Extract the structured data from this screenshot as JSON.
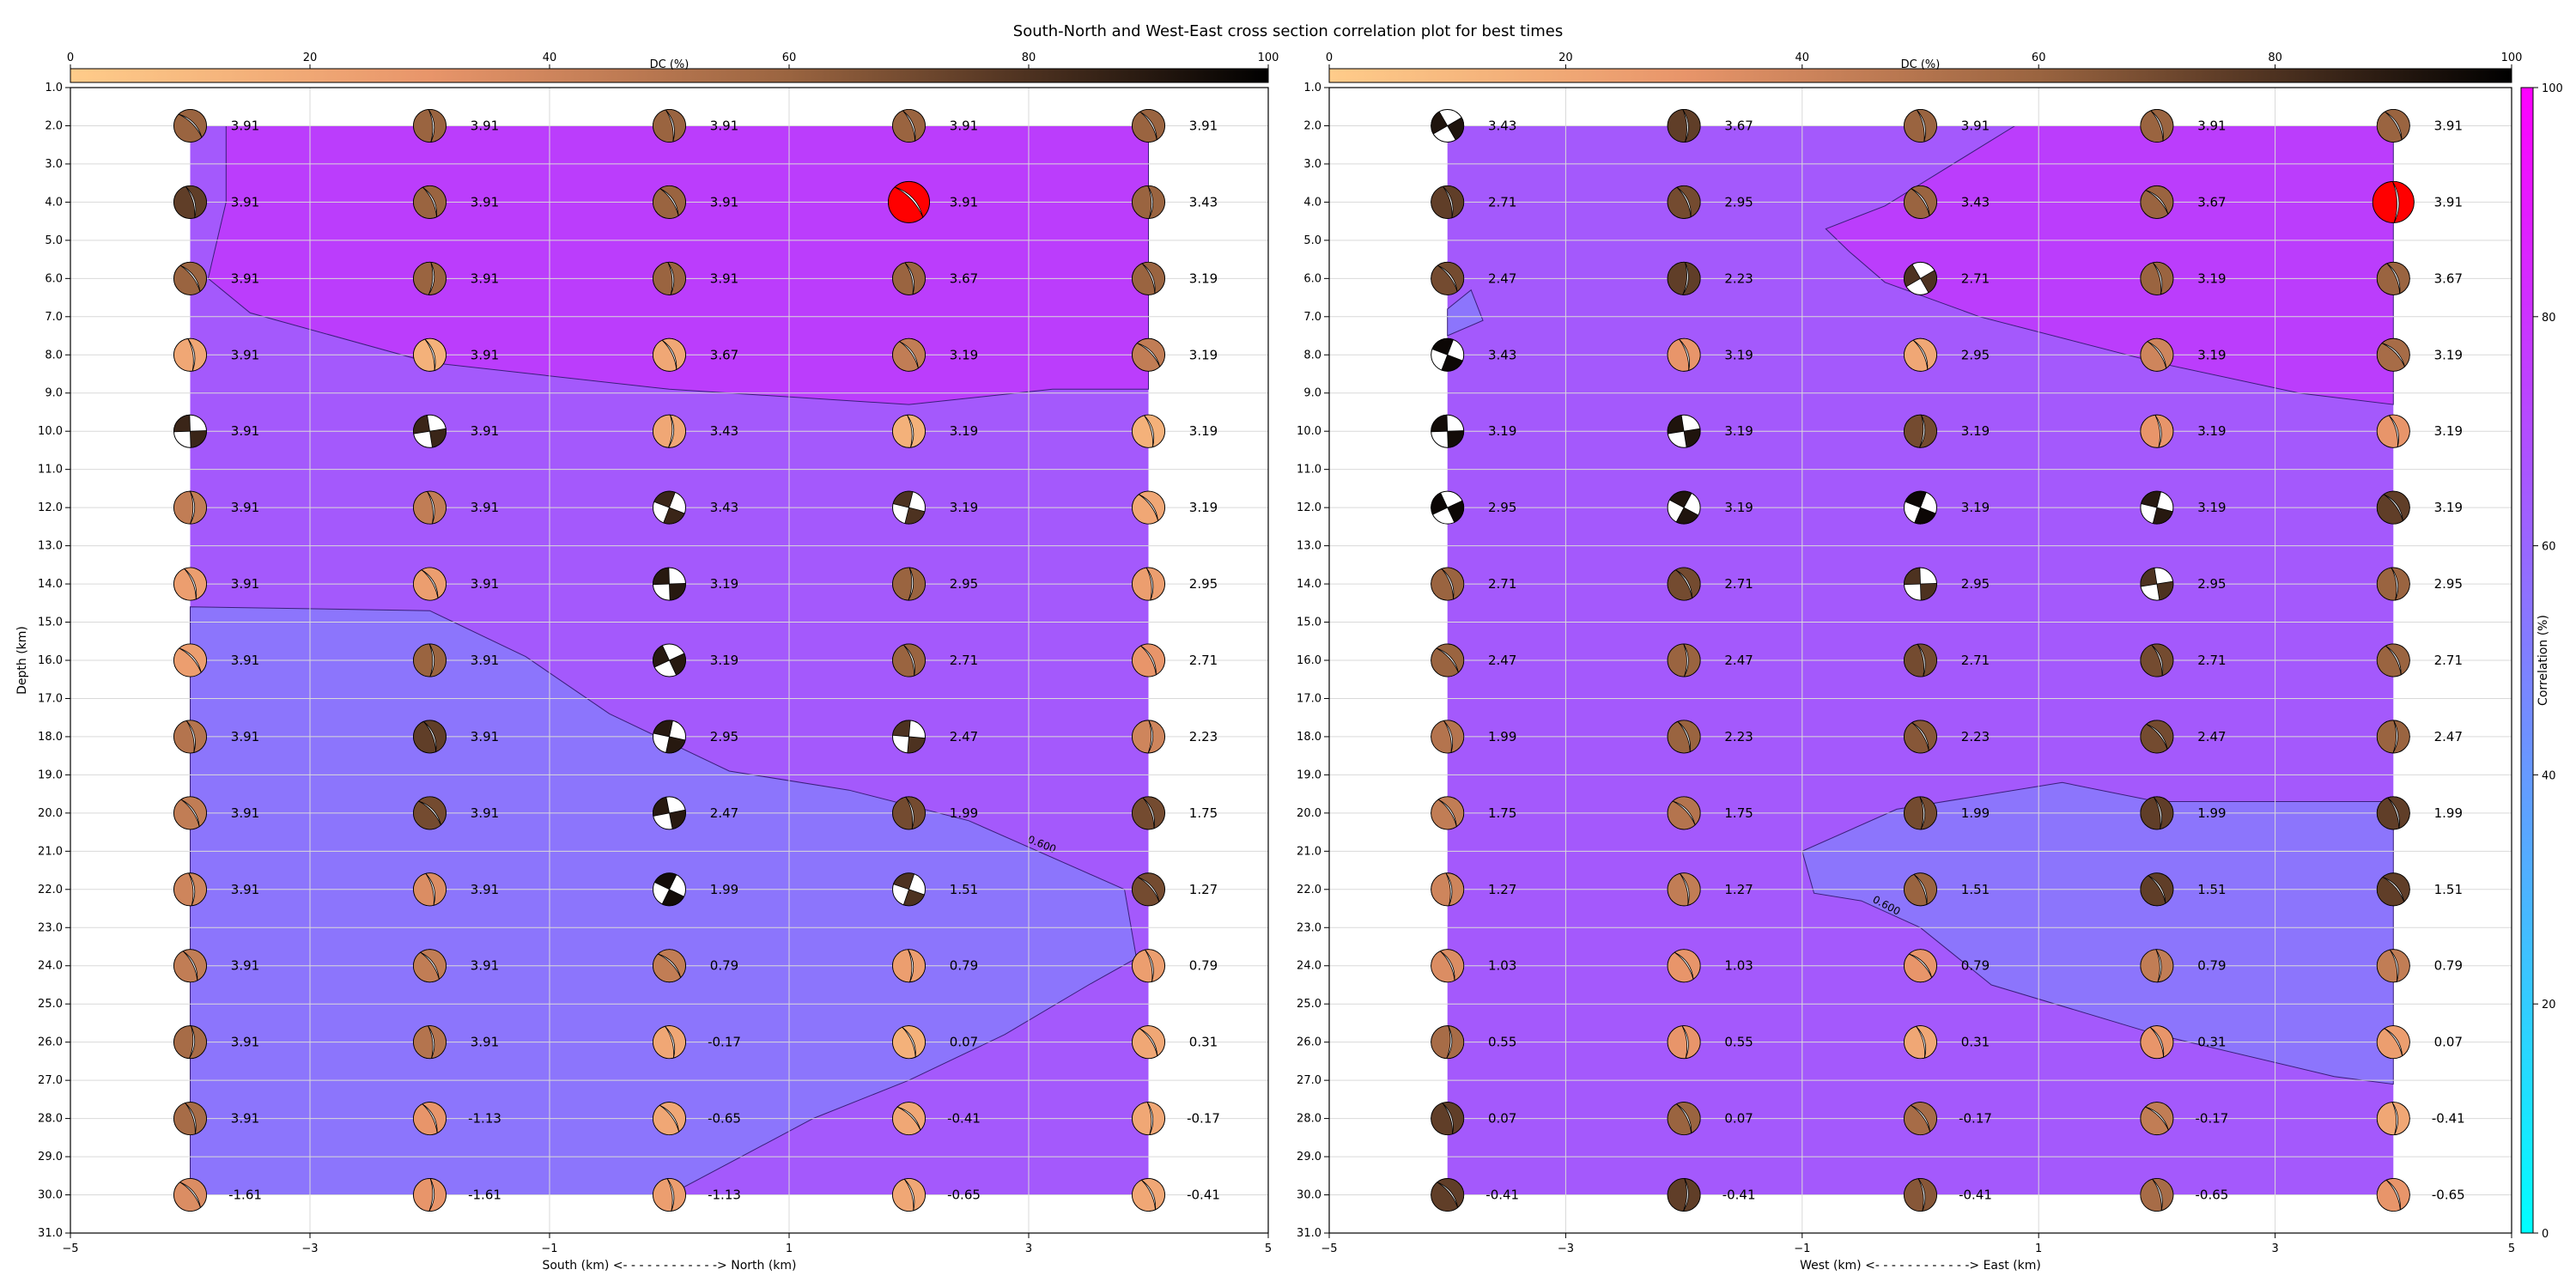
{
  "title": "South-North and West-East cross section correlation plot for best times",
  "colorbar_dc": {
    "label": "DC (%)",
    "ticks": [
      0,
      20,
      40,
      60,
      80,
      100
    ]
  },
  "colorbar_corr": {
    "label": "Correlation (%)",
    "ticks": [
      0,
      20,
      40,
      60,
      80,
      100
    ]
  },
  "colors": {
    "contour_high": "#bb3dfc",
    "contour_mid": "#a459fc",
    "contour_low": "#8c75fc",
    "best_fit_beachball": "#ff0000",
    "grid": "#d9d9d9"
  },
  "chart_data": [
    {
      "type": "heatmap",
      "title": "",
      "xlabel": "South (km) <- - - - - - - - - - - -> North (km)",
      "ylabel": "Depth (km)",
      "xlim": [
        -5,
        5
      ],
      "ylim": [
        31,
        1
      ],
      "x_ticks": [
        -5,
        -3,
        -1,
        1,
        3,
        5
      ],
      "y_ticks": [
        1,
        2,
        3,
        4,
        5,
        6,
        7,
        8,
        9,
        10,
        11,
        12,
        13,
        14,
        15,
        16,
        17,
        18,
        19,
        20,
        21,
        22,
        23,
        24,
        25,
        26,
        27,
        28,
        29,
        30,
        31
      ],
      "columns_x": [
        -4,
        -2,
        0,
        2,
        4
      ],
      "rows_depth": [
        2,
        4,
        6,
        8,
        10,
        12,
        14,
        16,
        18,
        20,
        22,
        24,
        26,
        28,
        30
      ],
      "contour_label": "0.600",
      "best_fit": {
        "x": 2,
        "depth": 4
      },
      "moment_values": [
        [
          "3.91",
          "3.91",
          "3.91",
          "3.91",
          "3.91"
        ],
        [
          "3.91",
          "3.91",
          "3.91",
          "3.91",
          "3.43"
        ],
        [
          "3.91",
          "3.91",
          "3.91",
          "3.67",
          "3.19"
        ],
        [
          "3.91",
          "3.91",
          "3.67",
          "3.19",
          "3.19"
        ],
        [
          "3.91",
          "3.91",
          "3.43",
          "3.19",
          "3.19"
        ],
        [
          "3.91",
          "3.91",
          "3.43",
          "3.19",
          "3.19"
        ],
        [
          "3.91",
          "3.91",
          "3.19",
          "2.95",
          "2.95"
        ],
        [
          "3.91",
          "3.91",
          "3.19",
          "2.71",
          "2.71"
        ],
        [
          "3.91",
          "3.91",
          "2.95",
          "2.47",
          "2.23"
        ],
        [
          "3.91",
          "3.91",
          "2.47",
          "1.99",
          "1.75"
        ],
        [
          "3.91",
          "3.91",
          "1.99",
          "1.51",
          "1.27"
        ],
        [
          "3.91",
          "3.91",
          "0.79",
          "0.79",
          "0.79"
        ],
        [
          "3.91",
          "3.91",
          "-0.17",
          "0.07",
          "0.31"
        ],
        [
          "3.91",
          "-1.13",
          "-0.65",
          "-0.41",
          "-0.17"
        ],
        [
          "-1.61",
          "-1.61",
          "-1.13",
          "-0.65",
          "-0.41"
        ]
      ],
      "dc_percent": [
        [
          60,
          60,
          60,
          60,
          60
        ],
        [
          75,
          60,
          60,
          60,
          60
        ],
        [
          60,
          60,
          60,
          60,
          60
        ],
        [
          20,
          15,
          20,
          45,
          45
        ],
        [
          85,
          85,
          20,
          15,
          15
        ],
        [
          45,
          45,
          85,
          80,
          20
        ],
        [
          25,
          25,
          90,
          60,
          25
        ],
        [
          25,
          60,
          90,
          60,
          30
        ],
        [
          50,
          75,
          90,
          80,
          40
        ],
        [
          45,
          70,
          90,
          70,
          70
        ],
        [
          40,
          35,
          95,
          80,
          70
        ],
        [
          45,
          45,
          45,
          25,
          25
        ],
        [
          55,
          50,
          20,
          15,
          20
        ],
        [
          55,
          30,
          20,
          20,
          20
        ],
        [
          35,
          30,
          25,
          20,
          20
        ]
      ]
    },
    {
      "type": "heatmap",
      "title": "",
      "xlabel": "West (km) <- - - - - - - - - - - -> East (km)",
      "ylabel": "",
      "xlim": [
        -5,
        5
      ],
      "ylim": [
        31,
        1
      ],
      "x_ticks": [
        -5,
        -3,
        -1,
        1,
        3,
        5
      ],
      "y_ticks": [
        1,
        2,
        3,
        4,
        5,
        6,
        7,
        8,
        9,
        10,
        11,
        12,
        13,
        14,
        15,
        16,
        17,
        18,
        19,
        20,
        21,
        22,
        23,
        24,
        25,
        26,
        27,
        28,
        29,
        30,
        31
      ],
      "columns_x": [
        -4,
        -2,
        0,
        2,
        4
      ],
      "rows_depth": [
        2,
        4,
        6,
        8,
        10,
        12,
        14,
        16,
        18,
        20,
        22,
        24,
        26,
        28,
        30
      ],
      "contour_label": "0.600",
      "best_fit": {
        "x": 4,
        "depth": 4
      },
      "moment_values": [
        [
          "3.43",
          "3.67",
          "3.91",
          "3.91",
          "3.91"
        ],
        [
          "2.71",
          "2.95",
          "3.43",
          "3.67",
          "3.91"
        ],
        [
          "2.47",
          "2.23",
          "2.71",
          "3.19",
          "3.67"
        ],
        [
          "3.43",
          "3.19",
          "2.95",
          "3.19",
          "3.19"
        ],
        [
          "3.19",
          "3.19",
          "3.19",
          "3.19",
          "3.19"
        ],
        [
          "2.95",
          "3.19",
          "3.19",
          "3.19",
          "3.19"
        ],
        [
          "2.71",
          "2.71",
          "2.95",
          "2.95",
          "2.95"
        ],
        [
          "2.47",
          "2.47",
          "2.71",
          "2.71",
          "2.71"
        ],
        [
          "1.99",
          "2.23",
          "2.23",
          "2.47",
          "2.47"
        ],
        [
          "1.75",
          "1.75",
          "1.99",
          "1.99",
          "1.99"
        ],
        [
          "1.27",
          "1.27",
          "1.51",
          "1.51",
          "1.51"
        ],
        [
          "1.03",
          "1.03",
          "0.79",
          "0.79",
          "0.79"
        ],
        [
          "0.55",
          "0.55",
          "0.31",
          "0.31",
          "0.07"
        ],
        [
          "0.07",
          "0.07",
          "-0.17",
          "-0.17",
          "-0.41"
        ],
        [
          "-0.41",
          "-0.41",
          "-0.41",
          "-0.65",
          "-0.65"
        ]
      ],
      "dc_percent": [
        [
          92,
          75,
          60,
          60,
          60
        ],
        [
          75,
          70,
          60,
          60,
          60
        ],
        [
          70,
          75,
          80,
          60,
          60
        ],
        [
          97,
          30,
          20,
          40,
          55
        ],
        [
          95,
          92,
          70,
          30,
          30
        ],
        [
          97,
          92,
          97,
          90,
          75
        ],
        [
          60,
          70,
          80,
          80,
          60
        ],
        [
          60,
          60,
          70,
          70,
          60
        ],
        [
          50,
          60,
          65,
          70,
          60
        ],
        [
          45,
          50,
          70,
          75,
          75
        ],
        [
          40,
          45,
          60,
          75,
          75
        ],
        [
          35,
          30,
          30,
          45,
          45
        ],
        [
          55,
          30,
          20,
          30,
          25
        ],
        [
          75,
          60,
          55,
          45,
          20
        ],
        [
          75,
          75,
          65,
          55,
          30
        ]
      ]
    }
  ]
}
